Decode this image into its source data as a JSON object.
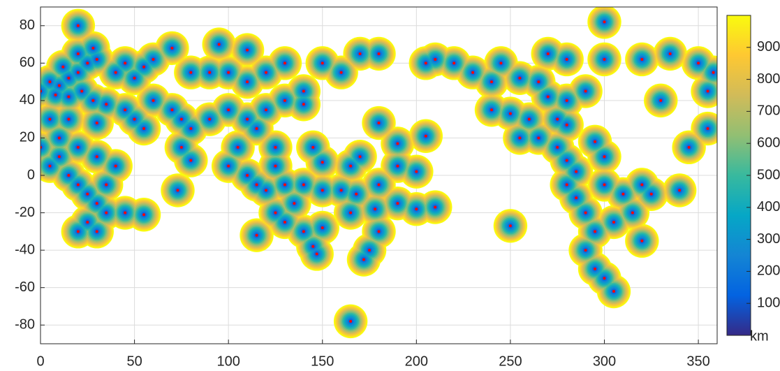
{
  "chart_data": {
    "type": "coverage-map",
    "xlim": [
      0,
      360
    ],
    "ylim": [
      -90,
      90
    ],
    "xticks": [
      0,
      50,
      100,
      150,
      200,
      250,
      300,
      350
    ],
    "yticks": [
      -80,
      -60,
      -40,
      -20,
      0,
      20,
      40,
      60,
      80
    ],
    "grid": true,
    "stations": {
      "color": "#ff0000",
      "x": [
        5,
        10,
        15,
        20,
        25,
        30,
        0,
        8,
        15,
        22,
        28,
        35,
        12,
        20,
        28,
        40,
        45,
        50,
        55,
        60,
        5,
        10,
        15,
        20,
        25,
        30,
        35,
        40,
        30,
        20,
        10,
        0,
        5,
        15,
        30,
        25,
        30,
        20,
        45,
        55,
        35,
        45,
        50,
        55,
        60,
        70,
        75,
        80,
        75,
        80,
        73,
        90,
        100,
        110,
        115,
        120,
        130,
        140,
        140,
        105,
        100,
        110,
        115,
        120,
        125,
        125,
        130,
        140,
        150,
        80,
        90,
        100,
        110,
        120,
        130,
        110,
        95,
        70,
        150,
        160,
        170,
        180,
        115,
        125,
        130,
        140,
        145,
        150,
        135,
        147,
        175,
        172,
        165,
        178,
        190,
        200,
        210,
        160,
        168,
        180,
        190,
        200,
        165,
        150,
        145,
        170,
        205,
        190,
        180,
        250,
        180,
        205,
        210,
        220,
        230,
        240,
        245,
        255,
        265,
        270,
        280,
        290,
        240,
        250,
        260,
        275,
        280,
        255,
        265,
        275,
        280,
        285,
        280,
        285,
        290,
        295,
        290,
        295,
        300,
        305,
        300,
        310,
        315,
        320,
        325,
        305,
        320,
        340,
        300,
        295,
        280,
        270,
        300,
        320,
        330,
        345,
        355,
        355,
        358,
        350,
        335,
        165,
        20,
        300
      ],
      "y": [
        50,
        48,
        52,
        55,
        60,
        62,
        45,
        43,
        42,
        45,
        40,
        38,
        58,
        65,
        68,
        55,
        60,
        52,
        58,
        62,
        5,
        10,
        0,
        -5,
        -10,
        -15,
        -5,
        5,
        10,
        15,
        20,
        15,
        30,
        30,
        28,
        -25,
        -30,
        -30,
        -20,
        -21,
        -20,
        35,
        30,
        25,
        40,
        35,
        30,
        25,
        15,
        8,
        -8,
        30,
        35,
        30,
        25,
        35,
        40,
        38,
        45,
        15,
        5,
        0,
        -5,
        -8,
        5,
        15,
        -5,
        -5,
        -8,
        55,
        55,
        55,
        50,
        55,
        60,
        67,
        70,
        68,
        60,
        55,
        65,
        65,
        -32,
        -20,
        -25,
        -30,
        -38,
        -28,
        -15,
        -42,
        -40,
        -45,
        -20,
        -18,
        -15,
        -18,
        -17,
        -8,
        -10,
        -5,
        5,
        2,
        5,
        7,
        15,
        10,
        21,
        17,
        28,
        -27,
        -30,
        60,
        62,
        60,
        55,
        50,
        60,
        52,
        50,
        42,
        40,
        45,
        35,
        33,
        30,
        30,
        27,
        20,
        20,
        15,
        8,
        2,
        -5,
        -12,
        -20,
        -30,
        -40,
        -50,
        -55,
        -62,
        -5,
        -10,
        -20,
        -5,
        -10,
        -25,
        -35,
        -8,
        10,
        18,
        62,
        65,
        62,
        62,
        40,
        15,
        25,
        45,
        55,
        60,
        65,
        -78,
        80,
        82
      ]
    },
    "colorbar": {
      "clim": [
        0,
        1000
      ],
      "ticks": [
        100,
        200,
        300,
        400,
        500,
        600,
        700,
        800,
        900
      ],
      "label": "km",
      "colormap": [
        "#352a87",
        "#0363e1",
        "#1485d4",
        "#06a7c6",
        "#38b99e",
        "#92bf73",
        "#d1bb59",
        "#fec832",
        "#f9fb0e"
      ]
    }
  }
}
